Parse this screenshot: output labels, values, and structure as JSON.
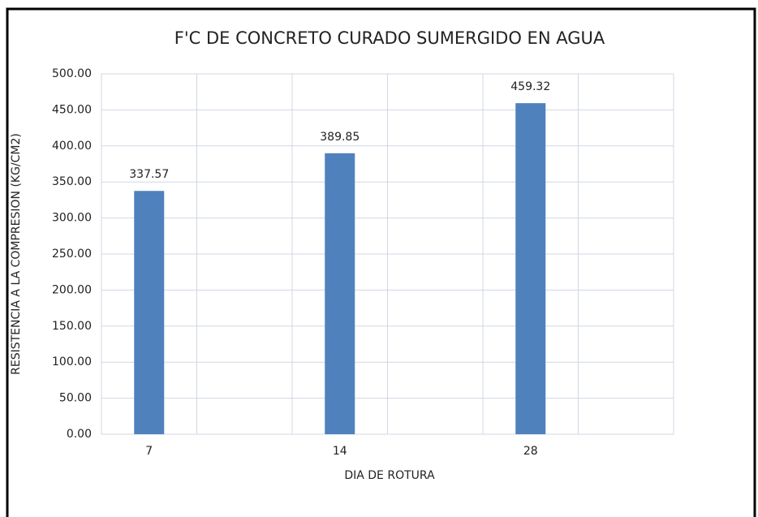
{
  "chart_data": {
    "type": "bar",
    "title": "F'C DE CONCRETO CURADO SUMERGIDO EN AGUA",
    "x_label": "DIA DE ROTURA",
    "y_label": "RESISTENCIA A LA COMPRESION (KG/CM2)",
    "categories": [
      "7",
      null,
      "14",
      null,
      "28",
      null
    ],
    "values": [
      337.57,
      null,
      389.85,
      null,
      459.32,
      null
    ],
    "color": "#4f81bd",
    "ylim": [
      0,
      500
    ],
    "yticks": [
      {
        "value": 0,
        "label": "0.00"
      },
      {
        "value": 50,
        "label": "50.00"
      },
      {
        "value": 100,
        "label": "100.00"
      },
      {
        "value": 150,
        "label": "150.00"
      },
      {
        "value": 200,
        "label": "200.00"
      },
      {
        "value": 250,
        "label": "250.00"
      },
      {
        "value": 300,
        "label": "300.00"
      },
      {
        "value": 350,
        "label": "350.00"
      },
      {
        "value": 400,
        "label": "400.00"
      },
      {
        "value": 450,
        "label": "450.00"
      },
      {
        "value": 500,
        "label": "500.00"
      }
    ],
    "grid": true
  }
}
